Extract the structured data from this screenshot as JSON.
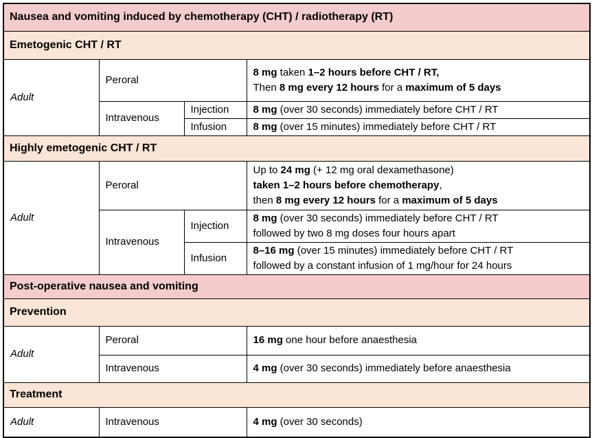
{
  "colors": {
    "header_pink": "#f4cccc",
    "header_peach": "#fbe5d6",
    "border": "#000000",
    "text": "#000000",
    "background": "#ffffff"
  },
  "title": "Nausea and vomiting induced by chemotherapy (CHT) / radiotherapy (RT)",
  "labels": {
    "adult": "Adult",
    "peroral": "Peroral",
    "intravenous": "Intravenous",
    "injection": "Injection",
    "infusion": "Infusion"
  },
  "sections": {
    "emetogenic": {
      "header": "Emetogenic CHT / RT",
      "peroral_dose": [
        [
          {
            "b": true,
            "t": "8 mg"
          },
          {
            "b": false,
            "t": " taken "
          },
          {
            "b": true,
            "t": "1–2 hours before CHT / RT,"
          }
        ],
        [
          {
            "b": false,
            "t": "Then "
          },
          {
            "b": true,
            "t": "8 mg every 12 hours"
          },
          {
            "b": false,
            "t": " for a "
          },
          {
            "b": true,
            "t": "maximum of 5 days"
          }
        ]
      ],
      "injection_dose": [
        [
          {
            "b": true,
            "t": "8 mg"
          },
          {
            "b": false,
            "t": " (over 30 seconds) immediately before CHT / RT"
          }
        ]
      ],
      "infusion_dose": [
        [
          {
            "b": true,
            "t": "8 mg"
          },
          {
            "b": false,
            "t": " (over 15 minutes) immediately before CHT / RT"
          }
        ]
      ]
    },
    "highly_emetogenic": {
      "header": "Highly emetogenic CHT / RT",
      "peroral_dose": [
        [
          {
            "b": false,
            "t": "Up to "
          },
          {
            "b": true,
            "t": "24 mg"
          },
          {
            "b": false,
            "t": " (+ 12 mg oral dexamethasone)"
          }
        ],
        [
          {
            "b": true,
            "t": "taken 1–2 hours before chemotherapy"
          },
          {
            "b": false,
            "t": ","
          }
        ],
        [
          {
            "b": false,
            "t": "then "
          },
          {
            "b": true,
            "t": "8 mg every 12 hours"
          },
          {
            "b": false,
            "t": " for a "
          },
          {
            "b": true,
            "t": "maximum of 5 days"
          }
        ]
      ],
      "injection_dose": [
        [
          {
            "b": true,
            "t": "8 mg"
          },
          {
            "b": false,
            "t": " (over 30 seconds) immediately before CHT / RT"
          }
        ],
        [
          {
            "b": false,
            "t": "followed by two 8 mg doses four hours apart"
          }
        ]
      ],
      "infusion_dose": [
        [
          {
            "b": true,
            "t": "8–16 mg"
          },
          {
            "b": false,
            "t": " (over 15 minutes) immediately before CHT / RT"
          }
        ],
        [
          {
            "b": false,
            "t": "followed by a constant infusion of 1 mg/hour for 24 hours"
          }
        ]
      ]
    },
    "post_operative": {
      "header": "Post-operative nausea and vomiting"
    },
    "prevention": {
      "header": "Prevention",
      "peroral_dose": [
        [
          {
            "b": true,
            "t": "16 mg"
          },
          {
            "b": false,
            "t": " one hour before anaesthesia"
          }
        ]
      ],
      "intravenous_dose": [
        [
          {
            "b": true,
            "t": "4 mg"
          },
          {
            "b": false,
            "t": " (over 30 seconds) immediately before anaesthesia"
          }
        ]
      ]
    },
    "treatment": {
      "header": "Treatment",
      "intravenous_dose": [
        [
          {
            "b": true,
            "t": "4 mg"
          },
          {
            "b": false,
            "t": " (over 30 seconds)"
          }
        ]
      ]
    }
  }
}
